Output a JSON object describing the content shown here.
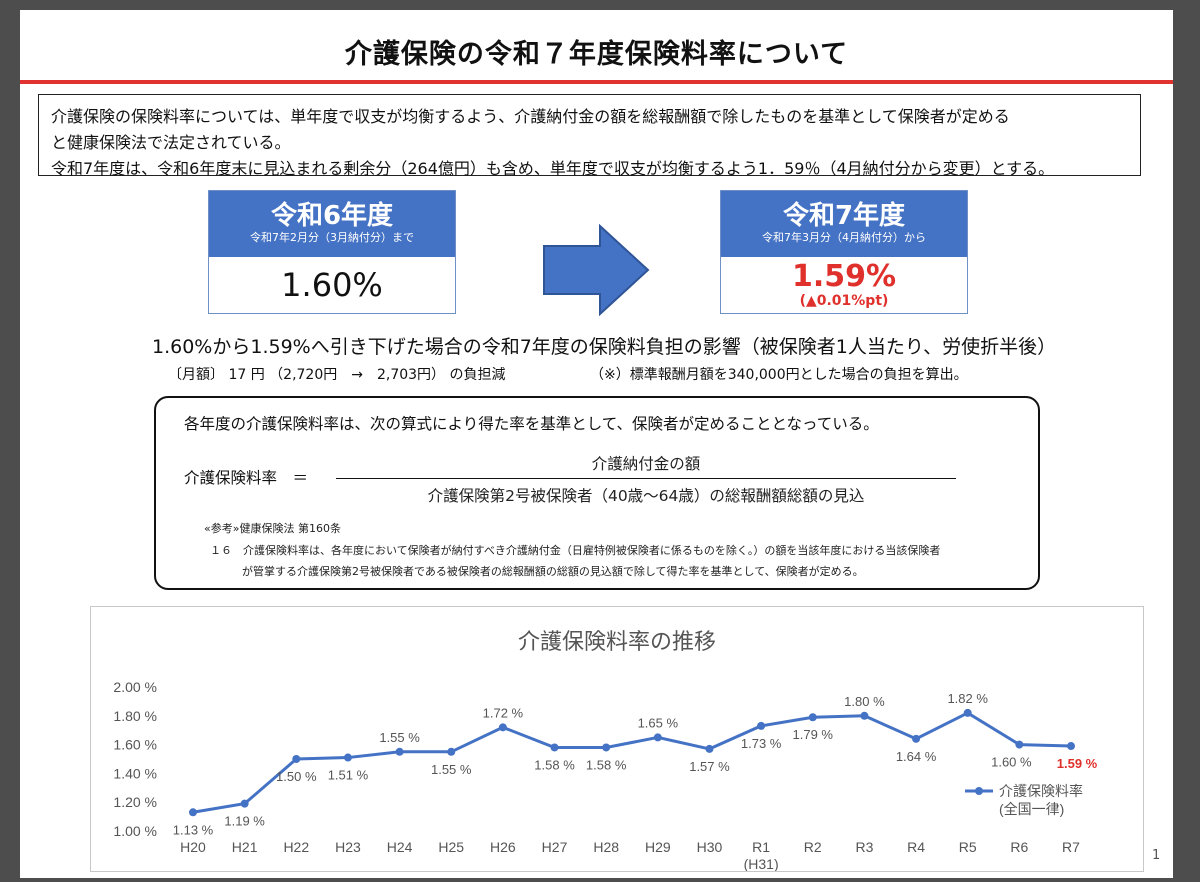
{
  "title": "介護保険の令和７年度保険料率について",
  "intro": {
    "line1": "介護保険の保険料率については、単年度で収支が均衡するよう、介護納付金の額を総報酬額で除したものを基準として保険者が定める",
    "line2": "と健康保険法で法定されている。",
    "line3": "令和7年度は、令和6年度末に見込まれる剰余分（264億円）も含め、単年度で収支が均衡するよう1．59％（4月納付分から変更）とする。"
  },
  "current_rate": {
    "year": "令和6年度",
    "period": "令和7年2月分（3月納付分）まで",
    "value": "1.60%"
  },
  "new_rate": {
    "year": "令和7年度",
    "period": "令和7年3月分（4月納付分）から",
    "value": "1.59%",
    "delta": "(▲0.01%pt)"
  },
  "impact": {
    "headline": "1.60%から1.59%へ引き下げた場合の令和7年度の保険料負担の影響（被保険者1人当たり、労使折半後）",
    "monthly": "〔月額〕 17 円 （2,720円　→　2,703円） の負担減",
    "note": "（※）標準報酬月額を340,000円とした場合の負担を算出。"
  },
  "formula": {
    "intro": "各年度の介護保険料率は、次の算式により得た率を基準として、保険者が定めることとなっている。",
    "label": "介護保険料率　＝",
    "numerator": "介護納付金の額",
    "denominator": "介護保険第2号被保険者（40歳～64歳）の総報酬額総額の見込",
    "ref_title": "«参考»健康保険法 第160条",
    "ref_line1": "１６　介護保険料率は、各年度において保険者が納付すべき介護納付金（日雇特例被保険者に係るものを除く。）の額を当該年度における当該保険者",
    "ref_line2": "が管掌する介護保険第2号被保険者である被保険者の総報酬額の総額の見込額で除して得た率を基準として、保険者が定める。"
  },
  "page_number": "1",
  "colors": {
    "accent_red": "#e0332f",
    "header_blue": "#4472c4",
    "series_blue": "#4472c4",
    "highlight_red": "#e0302c"
  },
  "chart_data": {
    "type": "line",
    "title": "介護保険料率の推移",
    "categories": [
      "H20",
      "H21",
      "H22",
      "H23",
      "H24",
      "H25",
      "H26",
      "H27",
      "H28",
      "H29",
      "H30",
      "R1",
      "R2",
      "R3",
      "R4",
      "R5",
      "R6",
      "R7"
    ],
    "category_sublabels": {
      "R1": "(H31)"
    },
    "series": [
      {
        "name": "介護保険料率",
        "name_sub": "(全国一律)",
        "values": [
          1.13,
          1.19,
          1.5,
          1.51,
          1.55,
          1.55,
          1.72,
          1.58,
          1.58,
          1.65,
          1.57,
          1.73,
          1.79,
          1.8,
          1.64,
          1.82,
          1.6,
          1.59
        ],
        "labels": [
          "1.13 %",
          "1.19 %",
          "1.50 %",
          "1.51 %",
          "1.55 %",
          "1.55 %",
          "1.72 %",
          "1.58 %",
          "1.58 %",
          "1.65 %",
          "1.57 %",
          "1.73 %",
          "1.79 %",
          "1.80 %",
          "1.64 %",
          "1.82 %",
          "1.60 %",
          "1.59 %"
        ]
      }
    ],
    "highlight_last_label": true,
    "yticks": [
      "1.00 %",
      "1.20 %",
      "1.40 %",
      "1.60 %",
      "1.80 %",
      "2.00 %"
    ],
    "ylim": [
      1.0,
      2.0
    ],
    "grid": false,
    "legend_position": "bottom-right"
  }
}
